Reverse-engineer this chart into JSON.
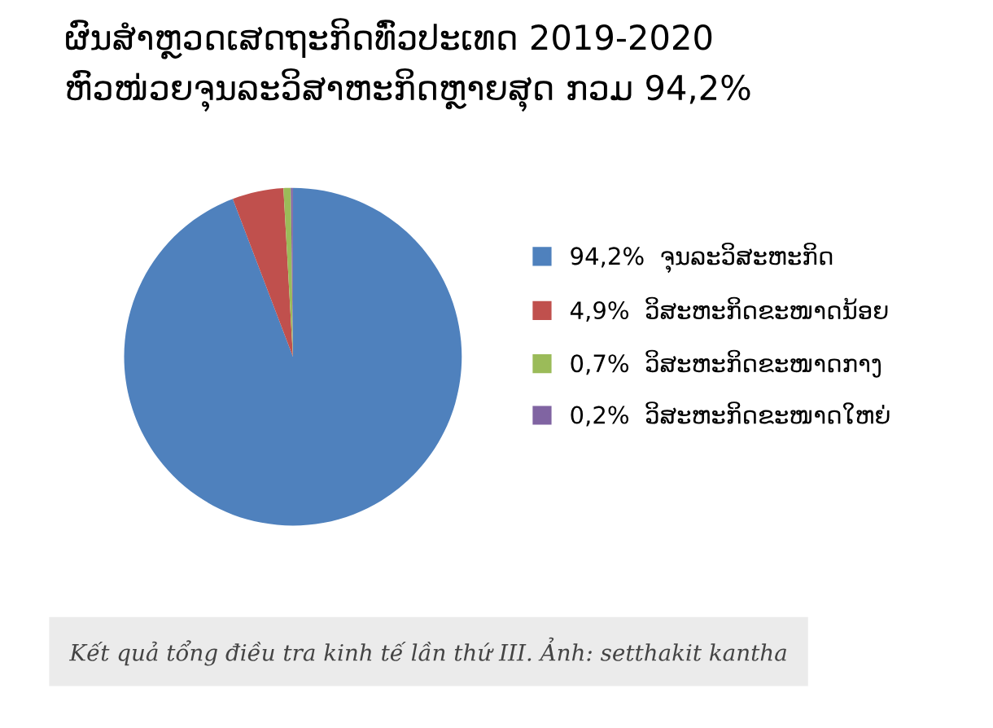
{
  "chart_data": {
    "type": "pie",
    "title": "ຜົນສຳຫຼວດເສດຖະກິດທົ່ວປະເທດ 2019-2020\nຫົວໜ່ວຍຈຸນລະວິສາຫະກິດຫຼາຍສຸດ ກວມ 94,2%",
    "categories": [
      "ຈຸນລະວິສະຫະກິດ",
      "ວິສະຫະກິດຂະໜາດນ້ອຍ",
      "ວິສະຫະກິດຂະໜາດກາງ",
      "ວິສະຫະກິດຂະໜາດໃຫຍ່"
    ],
    "values": [
      94.2,
      4.9,
      0.7,
      0.2
    ],
    "value_labels": [
      "94,2%",
      "4,9%",
      "0,7%",
      "0,2%"
    ],
    "colors": [
      "#4f81bd",
      "#c0504d",
      "#9bbb59",
      "#8064a2"
    ],
    "legend": "right",
    "annotations": [
      "Kết quả tổng điều tra kinh tế lần thứ III. Ảnh: setthakit kantha"
    ]
  }
}
